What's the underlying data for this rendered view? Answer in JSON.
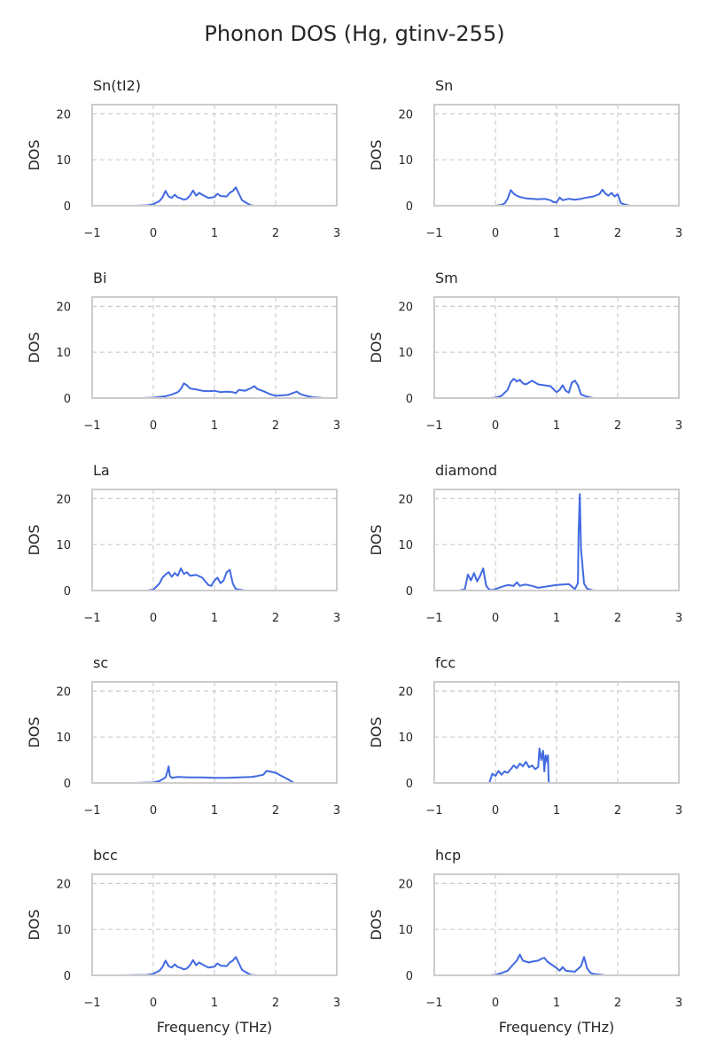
{
  "figure": {
    "title": "Phonon DOS (Hg, gtinv-255)"
  },
  "chart_data": {
    "type": "line",
    "xlim": [
      -1,
      3
    ],
    "ylim": [
      0,
      22
    ],
    "xticks": [
      -1,
      0,
      1,
      2,
      3
    ],
    "yticks": [
      0,
      10,
      20
    ],
    "xtick_labels": [
      "−1",
      "0",
      "1",
      "2",
      "3"
    ],
    "ytick_labels": [
      "0",
      "10",
      "20"
    ],
    "xlabel": "Frequency (THz)",
    "ylabel": "DOS",
    "grid": true,
    "line_color": "#4169e1",
    "panels": [
      {
        "title": "Sn(tI2)",
        "x": [
          -0.3,
          -0.1,
          0.0,
          0.1,
          0.15,
          0.2,
          0.25,
          0.3,
          0.35,
          0.4,
          0.45,
          0.5,
          0.55,
          0.6,
          0.65,
          0.7,
          0.75,
          0.8,
          0.9,
          1.0,
          1.05,
          1.1,
          1.2,
          1.25,
          1.3,
          1.35,
          1.4,
          1.45,
          1.5,
          1.55,
          1.6,
          1.65
        ],
        "y": [
          0,
          0.1,
          0.3,
          1.0,
          1.8,
          3.2,
          2.0,
          1.7,
          2.4,
          1.8,
          1.6,
          1.3,
          1.5,
          2.2,
          3.3,
          2.2,
          2.8,
          2.4,
          1.7,
          1.9,
          2.6,
          2.1,
          2.0,
          2.8,
          3.2,
          4.0,
          2.6,
          1.2,
          0.8,
          0.4,
          0.1,
          0
        ]
      },
      {
        "title": "Sn",
        "x": [
          -0.5,
          0.0,
          0.1,
          0.15,
          0.2,
          0.25,
          0.3,
          0.35,
          0.4,
          0.5,
          0.6,
          0.7,
          0.8,
          0.9,
          0.95,
          1.0,
          1.05,
          1.1,
          1.2,
          1.3,
          1.4,
          1.5,
          1.6,
          1.7,
          1.75,
          1.8,
          1.85,
          1.9,
          1.95,
          2.0,
          2.05,
          2.1,
          2.2
        ],
        "y": [
          0,
          0,
          0.2,
          0.5,
          1.5,
          3.4,
          2.6,
          2.2,
          1.9,
          1.6,
          1.5,
          1.4,
          1.5,
          1.2,
          0.8,
          0.7,
          1.8,
          1.2,
          1.5,
          1.3,
          1.5,
          1.8,
          2.0,
          2.5,
          3.5,
          2.6,
          2.2,
          2.8,
          2.0,
          2.5,
          0.6,
          0.3,
          0
        ]
      },
      {
        "title": "Bi",
        "x": [
          -0.2,
          0.0,
          0.2,
          0.3,
          0.4,
          0.45,
          0.5,
          0.55,
          0.6,
          0.7,
          0.8,
          0.9,
          1.0,
          1.1,
          1.2,
          1.3,
          1.35,
          1.4,
          1.5,
          1.6,
          1.65,
          1.7,
          1.8,
          1.9,
          2.0,
          2.1,
          2.2,
          2.3,
          2.35,
          2.4,
          2.5,
          2.6,
          2.8
        ],
        "y": [
          0,
          0.1,
          0.4,
          0.8,
          1.3,
          2.0,
          3.2,
          2.8,
          2.1,
          1.9,
          1.6,
          1.5,
          1.6,
          1.3,
          1.4,
          1.3,
          1.1,
          1.8,
          1.6,
          2.2,
          2.6,
          2.0,
          1.5,
          0.9,
          0.5,
          0.6,
          0.7,
          1.2,
          1.4,
          0.9,
          0.5,
          0.2,
          0
        ]
      },
      {
        "title": "Sm",
        "x": [
          -0.1,
          0.0,
          0.1,
          0.2,
          0.25,
          0.3,
          0.35,
          0.4,
          0.45,
          0.5,
          0.55,
          0.6,
          0.7,
          0.8,
          0.9,
          1.0,
          1.05,
          1.1,
          1.15,
          1.2,
          1.25,
          1.3,
          1.35,
          1.4,
          1.5,
          1.6
        ],
        "y": [
          0,
          0.1,
          0.5,
          1.8,
          3.5,
          4.2,
          3.6,
          4.0,
          3.2,
          3.0,
          3.4,
          3.8,
          3.0,
          2.8,
          2.6,
          1.3,
          1.8,
          2.8,
          1.6,
          1.2,
          3.4,
          3.8,
          2.8,
          0.8,
          0.3,
          0
        ]
      },
      {
        "title": "La",
        "x": [
          -0.1,
          0.0,
          0.1,
          0.15,
          0.2,
          0.25,
          0.3,
          0.35,
          0.4,
          0.45,
          0.5,
          0.55,
          0.6,
          0.7,
          0.8,
          0.85,
          0.9,
          0.95,
          1.0,
          1.05,
          1.1,
          1.15,
          1.2,
          1.25,
          1.3,
          1.35,
          1.5
        ],
        "y": [
          0,
          0.2,
          1.5,
          2.8,
          3.5,
          4.0,
          3.0,
          3.8,
          3.2,
          4.8,
          3.6,
          4.0,
          3.2,
          3.4,
          2.8,
          2.0,
          1.2,
          1.0,
          2.2,
          2.8,
          1.6,
          2.2,
          4.0,
          4.5,
          1.5,
          0.3,
          0
        ]
      },
      {
        "title": "diamond",
        "x": [
          -0.6,
          -0.55,
          -0.5,
          -0.45,
          -0.4,
          -0.35,
          -0.3,
          -0.25,
          -0.2,
          -0.15,
          -0.1,
          -0.05,
          0.0,
          0.1,
          0.2,
          0.3,
          0.35,
          0.4,
          0.45,
          0.5,
          0.6,
          0.7,
          0.8,
          0.9,
          1.0,
          1.1,
          1.2,
          1.3,
          1.35,
          1.36,
          1.38,
          1.39,
          1.4,
          1.42,
          1.45,
          1.5,
          1.6
        ],
        "y": [
          0,
          0.1,
          0.3,
          3.5,
          2.2,
          3.8,
          2.0,
          3.2,
          4.8,
          1.0,
          0.2,
          0.1,
          0.3,
          0.8,
          1.2,
          1.0,
          1.8,
          1.0,
          1.2,
          1.3,
          1.0,
          0.6,
          0.8,
          1.0,
          1.2,
          1.3,
          1.4,
          0.3,
          1.6,
          12.0,
          21.0,
          15.0,
          9.0,
          6.0,
          1.5,
          0.4,
          0
        ]
      },
      {
        "title": "sc",
        "x": [
          -0.3,
          0.0,
          0.1,
          0.2,
          0.23,
          0.25,
          0.27,
          0.3,
          0.4,
          0.6,
          0.8,
          1.0,
          1.2,
          1.4,
          1.6,
          1.7,
          1.8,
          1.85,
          1.9,
          2.0,
          2.1,
          2.2,
          2.3
        ],
        "y": [
          0,
          0.1,
          0.4,
          1.2,
          2.5,
          3.6,
          1.6,
          1.1,
          1.3,
          1.2,
          1.2,
          1.1,
          1.1,
          1.2,
          1.3,
          1.5,
          1.8,
          2.6,
          2.5,
          2.2,
          1.5,
          0.8,
          0
        ]
      },
      {
        "title": "fcc",
        "x": [
          -0.1,
          -0.05,
          0.0,
          0.05,
          0.1,
          0.15,
          0.2,
          0.25,
          0.3,
          0.35,
          0.4,
          0.45,
          0.5,
          0.55,
          0.6,
          0.65,
          0.7,
          0.72,
          0.75,
          0.78,
          0.8,
          0.82,
          0.85,
          0.86,
          0.87,
          0.88
        ],
        "y": [
          0,
          2.0,
          1.5,
          2.6,
          1.8,
          2.5,
          2.2,
          3.0,
          3.8,
          3.2,
          4.2,
          3.6,
          4.6,
          3.4,
          3.8,
          3.0,
          3.5,
          7.5,
          5.0,
          7.0,
          2.5,
          6.0,
          4.5,
          6.0,
          0.5,
          0
        ]
      },
      {
        "title": "bcc",
        "x": [
          -0.5,
          -0.1,
          0.0,
          0.1,
          0.15,
          0.2,
          0.25,
          0.3,
          0.35,
          0.4,
          0.45,
          0.5,
          0.55,
          0.6,
          0.65,
          0.7,
          0.75,
          0.8,
          0.9,
          1.0,
          1.05,
          1.1,
          1.2,
          1.25,
          1.3,
          1.35,
          1.4,
          1.45,
          1.5,
          1.55,
          1.6,
          1.7
        ],
        "y": [
          0,
          0.1,
          0.3,
          1.0,
          1.8,
          3.2,
          2.0,
          1.7,
          2.4,
          1.8,
          1.6,
          1.3,
          1.5,
          2.2,
          3.3,
          2.2,
          2.8,
          2.4,
          1.7,
          1.9,
          2.6,
          2.1,
          2.0,
          2.8,
          3.2,
          4.0,
          2.6,
          1.2,
          0.8,
          0.4,
          0.1,
          0
        ]
      },
      {
        "title": "hcp",
        "x": [
          -0.1,
          0.0,
          0.1,
          0.2,
          0.3,
          0.35,
          0.4,
          0.45,
          0.5,
          0.55,
          0.6,
          0.7,
          0.75,
          0.8,
          0.85,
          0.9,
          1.0,
          1.05,
          1.1,
          1.15,
          1.2,
          1.3,
          1.4,
          1.45,
          1.5,
          1.55,
          1.6,
          1.8
        ],
        "y": [
          0,
          0.1,
          0.5,
          1.0,
          2.5,
          3.2,
          4.5,
          3.2,
          3.0,
          2.8,
          3.0,
          3.2,
          3.6,
          3.8,
          3.0,
          2.5,
          1.6,
          1.0,
          1.8,
          1.0,
          0.9,
          0.8,
          2.0,
          4.0,
          1.5,
          0.6,
          0.3,
          0
        ]
      }
    ]
  }
}
